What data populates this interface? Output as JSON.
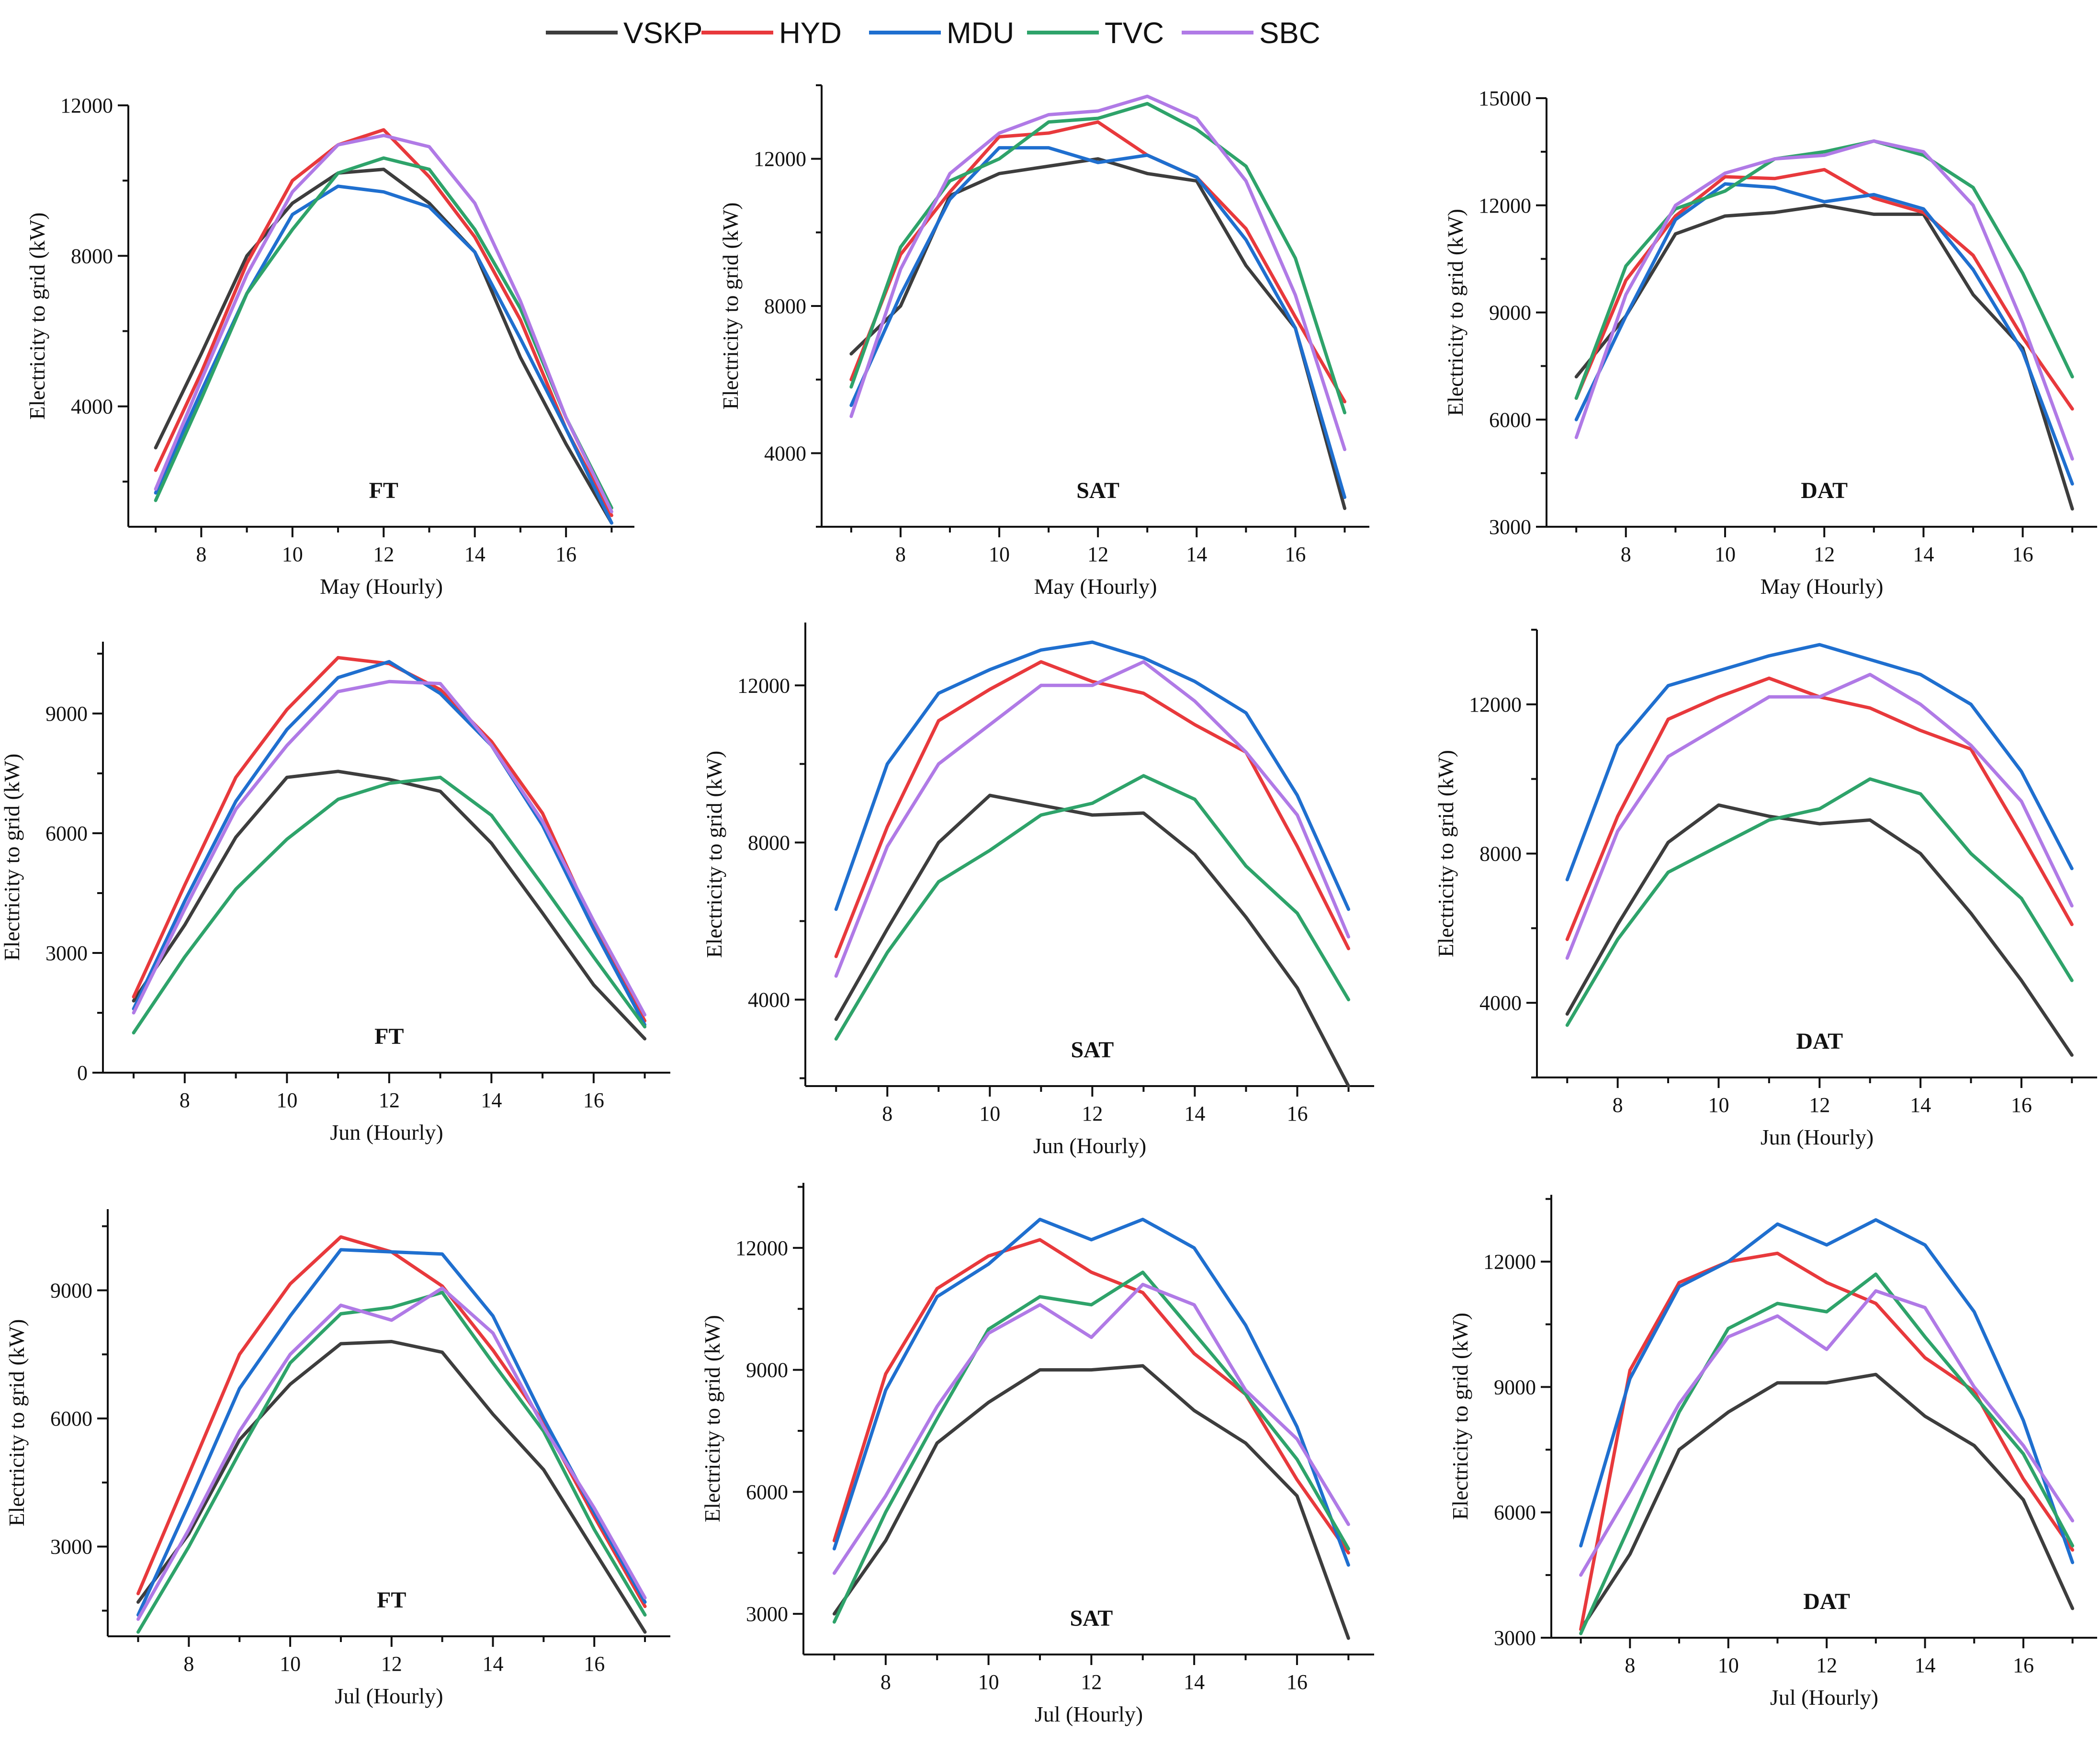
{
  "legend": [
    {
      "name": "VSKP",
      "color": "#3d3d3d"
    },
    {
      "name": "HYD",
      "color": "#e8393c"
    },
    {
      "name": "MDU",
      "color": "#1f6fcf"
    },
    {
      "name": "TVC",
      "color": "#2ea36a"
    },
    {
      "name": "SBC",
      "color": "#b07ae6"
    }
  ],
  "chart_data": [
    {
      "type": "line",
      "title": "FT",
      "xlabel": "May (Hourly)",
      "ylabel": "Electricity to grid (kW)",
      "x": [
        7,
        8,
        9,
        10,
        11,
        12,
        13,
        14,
        15,
        16,
        17
      ],
      "xticks": [
        8,
        10,
        12,
        14,
        16
      ],
      "xlim": [
        6.4,
        17.5
      ],
      "yticks": [
        4000,
        8000,
        12000
      ],
      "ylim": [
        800,
        12000
      ],
      "series": [
        {
          "name": "VSKP",
          "values": [
            2900,
            5400,
            8000,
            9400,
            10200,
            10300,
            9400,
            8100,
            5300,
            3000,
            900
          ]
        },
        {
          "name": "HYD",
          "values": [
            2300,
            4900,
            7800,
            10000,
            10950,
            11350,
            10100,
            8500,
            6300,
            3400,
            1100
          ]
        },
        {
          "name": "MDU",
          "values": [
            1700,
            4400,
            7000,
            9100,
            9850,
            9700,
            9300,
            8100,
            5800,
            3400,
            900
          ]
        },
        {
          "name": "TVC",
          "values": [
            1500,
            4200,
            7000,
            8700,
            10200,
            10600,
            10300,
            8700,
            6600,
            3700,
            1300
          ]
        },
        {
          "name": "SBC",
          "values": [
            1800,
            4700,
            7500,
            9700,
            10950,
            11200,
            10900,
            9400,
            6800,
            3700,
            1200
          ]
        }
      ]
    },
    {
      "type": "line",
      "title": "SAT",
      "xlabel": "May (Hourly)",
      "ylabel": "Electricity to grid (kW)",
      "x": [
        7,
        8,
        9,
        10,
        11,
        12,
        13,
        14,
        15,
        16,
        17
      ],
      "xticks": [
        8,
        10,
        12,
        14,
        16
      ],
      "xlim": [
        6.4,
        17.5
      ],
      "yticks": [
        4000,
        8000,
        12000
      ],
      "ylim": [
        2000,
        14000
      ],
      "series": [
        {
          "name": "VSKP",
          "values": [
            6700,
            8000,
            11000,
            11600,
            11800,
            12000,
            11600,
            11400,
            9100,
            7400,
            2500
          ]
        },
        {
          "name": "HYD",
          "values": [
            6000,
            9400,
            11100,
            12600,
            12700,
            13000,
            12100,
            11500,
            10100,
            7700,
            5400
          ]
        },
        {
          "name": "MDU",
          "values": [
            5300,
            8300,
            10900,
            12300,
            12300,
            11900,
            12100,
            11500,
            9800,
            7400,
            2800
          ]
        },
        {
          "name": "TVC",
          "values": [
            5800,
            9600,
            11400,
            12000,
            13000,
            13100,
            13500,
            12800,
            11800,
            9300,
            5100
          ]
        },
        {
          "name": "SBC",
          "values": [
            5000,
            9000,
            11600,
            12700,
            13200,
            13300,
            13700,
            13100,
            11400,
            8300,
            4100
          ]
        }
      ]
    },
    {
      "type": "line",
      "title": "DAT",
      "xlabel": "May (Hourly)",
      "ylabel": "Electricity to grid (kW)",
      "x": [
        7,
        8,
        9,
        10,
        11,
        12,
        13,
        14,
        15,
        16,
        17
      ],
      "xticks": [
        8,
        10,
        12,
        14,
        16
      ],
      "xlim": [
        6.4,
        17.5
      ],
      "yticks": [
        3000,
        6000,
        9000,
        12000,
        15000
      ],
      "ylim": [
        3000,
        15000
      ],
      "series": [
        {
          "name": "VSKP",
          "values": [
            7200,
            8900,
            11200,
            11700,
            11800,
            12000,
            11750,
            11750,
            9500,
            8000,
            3500
          ]
        },
        {
          "name": "HYD",
          "values": [
            6600,
            9900,
            11700,
            12800,
            12750,
            13000,
            12200,
            11800,
            10600,
            8300,
            6300
          ]
        },
        {
          "name": "MDU",
          "values": [
            6000,
            8900,
            11600,
            12600,
            12500,
            12100,
            12300,
            11900,
            10200,
            7900,
            4200
          ]
        },
        {
          "name": "TVC",
          "values": [
            6600,
            10300,
            11900,
            12400,
            13300,
            13500,
            13800,
            13400,
            12500,
            10100,
            7200
          ]
        },
        {
          "name": "SBC",
          "values": [
            5500,
            9500,
            12000,
            12900,
            13300,
            13400,
            13800,
            13500,
            12000,
            8700,
            4900
          ]
        }
      ]
    },
    {
      "type": "line",
      "title": "FT",
      "xlabel": "Jun (Hourly)",
      "ylabel": "Electricity to grid (kW)",
      "x": [
        7,
        8,
        9,
        10,
        11,
        12,
        13,
        14,
        15,
        16,
        17
      ],
      "xticks": [
        8,
        10,
        12,
        14,
        16
      ],
      "xlim": [
        6.4,
        17.5
      ],
      "yticks": [
        0,
        3000,
        6000,
        9000
      ],
      "ylim": [
        0,
        10800
      ],
      "series": [
        {
          "name": "VSKP",
          "values": [
            1800,
            3700,
            5900,
            7400,
            7550,
            7350,
            7050,
            5750,
            4000,
            2200,
            850
          ]
        },
        {
          "name": "HYD",
          "values": [
            1900,
            4700,
            7400,
            9100,
            10400,
            10250,
            9600,
            8300,
            6500,
            3700,
            1300
          ]
        },
        {
          "name": "MDU",
          "values": [
            1600,
            4300,
            6800,
            8600,
            9900,
            10300,
            9500,
            8200,
            6200,
            3600,
            1200
          ]
        },
        {
          "name": "TVC",
          "values": [
            1000,
            2900,
            4600,
            5850,
            6850,
            7250,
            7400,
            6450,
            4700,
            2900,
            1150
          ]
        },
        {
          "name": "SBC",
          "values": [
            1500,
            4100,
            6600,
            8200,
            9550,
            9800,
            9750,
            8200,
            6300,
            3800,
            1450
          ]
        }
      ]
    },
    {
      "type": "line",
      "title": "SAT",
      "xlabel": "Jun (Hourly)",
      "ylabel": "Electricity to grid (kW)",
      "x": [
        7,
        8,
        9,
        10,
        11,
        12,
        13,
        14,
        15,
        16,
        17
      ],
      "xticks": [
        8,
        10,
        12,
        14,
        16
      ],
      "xlim": [
        6.4,
        17.5
      ],
      "yticks": [
        4000,
        8000,
        12000
      ],
      "ylim": [
        1800,
        13600
      ],
      "series": [
        {
          "name": "VSKP",
          "values": [
            3500,
            5800,
            8000,
            9200,
            8950,
            8700,
            8750,
            7700,
            6100,
            4300,
            1800
          ]
        },
        {
          "name": "HYD",
          "values": [
            5100,
            8400,
            11100,
            11900,
            12600,
            12100,
            11800,
            11000,
            10300,
            7900,
            5300
          ]
        },
        {
          "name": "MDU",
          "values": [
            6300,
            10000,
            11800,
            12400,
            12900,
            13100,
            12700,
            12100,
            11300,
            9200,
            6300
          ]
        },
        {
          "name": "TVC",
          "values": [
            3000,
            5200,
            7000,
            7800,
            8700,
            9000,
            9700,
            9100,
            7400,
            6200,
            4000
          ]
        },
        {
          "name": "SBC",
          "values": [
            4600,
            7900,
            10000,
            11000,
            12000,
            12000,
            12600,
            11600,
            10300,
            8700,
            5600
          ]
        }
      ]
    },
    {
      "type": "line",
      "title": "DAT",
      "xlabel": "Jun (Hourly)",
      "ylabel": "Electricity to grid (kW)",
      "x": [
        7,
        8,
        9,
        10,
        11,
        12,
        13,
        14,
        15,
        16,
        17
      ],
      "xticks": [
        8,
        10,
        12,
        14,
        16
      ],
      "xlim": [
        6.4,
        17.5
      ],
      "yticks": [
        4000,
        8000,
        12000
      ],
      "ylim": [
        2000,
        14000
      ],
      "series": [
        {
          "name": "VSKP",
          "values": [
            3700,
            6100,
            8300,
            9300,
            9000,
            8800,
            8900,
            8000,
            6400,
            4600,
            2600
          ]
        },
        {
          "name": "HYD",
          "values": [
            5700,
            9000,
            11600,
            12200,
            12700,
            12200,
            11900,
            11300,
            10800,
            8500,
            6100
          ]
        },
        {
          "name": "MDU",
          "values": [
            7300,
            10900,
            12500,
            12900,
            13300,
            13600,
            13200,
            12800,
            12000,
            10200,
            7600
          ]
        },
        {
          "name": "TVC",
          "values": [
            3400,
            5700,
            7500,
            8200,
            8900,
            9200,
            10000,
            9600,
            8000,
            6800,
            4600
          ]
        },
        {
          "name": "SBC",
          "values": [
            5200,
            8600,
            10600,
            11400,
            12200,
            12200,
            12800,
            12000,
            10900,
            9400,
            6600
          ]
        }
      ]
    },
    {
      "type": "line",
      "title": "FT",
      "xlabel": "Jul (Hourly)",
      "ylabel": "Electricity to grid (kW)",
      "x": [
        7,
        8,
        9,
        10,
        11,
        12,
        13,
        14,
        15,
        16,
        17
      ],
      "xticks": [
        8,
        10,
        12,
        14,
        16
      ],
      "xlim": [
        6.4,
        17.5
      ],
      "yticks": [
        3000,
        6000,
        9000
      ],
      "ylim": [
        900,
        10900
      ],
      "series": [
        {
          "name": "VSKP",
          "values": [
            1700,
            3300,
            5500,
            6800,
            7750,
            7800,
            7550,
            6100,
            4800,
            2900,
            1000
          ]
        },
        {
          "name": "HYD",
          "values": [
            1900,
            4700,
            7500,
            9150,
            10250,
            9900,
            9100,
            7600,
            5900,
            3700,
            1600
          ]
        },
        {
          "name": "MDU",
          "values": [
            1400,
            4000,
            6700,
            8400,
            9950,
            9900,
            9850,
            8400,
            6000,
            3800,
            1700
          ]
        },
        {
          "name": "TVC",
          "values": [
            1000,
            3000,
            5200,
            7300,
            8450,
            8600,
            8950,
            7300,
            5700,
            3400,
            1400
          ]
        },
        {
          "name": "SBC",
          "values": [
            1300,
            3400,
            5700,
            7500,
            8650,
            8300,
            9050,
            8000,
            5800,
            3900,
            1800
          ]
        }
      ]
    },
    {
      "type": "line",
      "title": "SAT",
      "xlabel": "Jul (Hourly)",
      "ylabel": "Electricity to grid (kW)",
      "x": [
        7,
        8,
        9,
        10,
        11,
        12,
        13,
        14,
        15,
        16,
        17
      ],
      "xticks": [
        8,
        10,
        12,
        14,
        16
      ],
      "xlim": [
        6.4,
        17.5
      ],
      "yticks": [
        3000,
        6000,
        9000,
        12000
      ],
      "ylim": [
        2000,
        13600
      ],
      "series": [
        {
          "name": "VSKP",
          "values": [
            3000,
            4800,
            7200,
            8200,
            9000,
            9000,
            9100,
            8000,
            7200,
            5900,
            2400
          ]
        },
        {
          "name": "HYD",
          "values": [
            4800,
            8900,
            11000,
            11800,
            12200,
            11400,
            10900,
            9400,
            8400,
            6300,
            4500
          ]
        },
        {
          "name": "MDU",
          "values": [
            4600,
            8500,
            10800,
            11600,
            12700,
            12200,
            12700,
            12000,
            10100,
            7600,
            4200
          ]
        },
        {
          "name": "TVC",
          "values": [
            2800,
            5500,
            7800,
            10000,
            10800,
            10600,
            11400,
            9900,
            8400,
            6800,
            4600
          ]
        },
        {
          "name": "SBC",
          "values": [
            4000,
            5900,
            8100,
            9900,
            10600,
            9800,
            11100,
            10600,
            8500,
            7300,
            5200
          ]
        }
      ]
    },
    {
      "type": "line",
      "title": "DAT",
      "xlabel": "Jul (Hourly)",
      "ylabel": "Electricity to grid (kW)",
      "x": [
        7,
        8,
        9,
        10,
        11,
        12,
        13,
        14,
        15,
        16,
        17
      ],
      "xticks": [
        8,
        10,
        12,
        14,
        16
      ],
      "xlim": [
        6.4,
        17.5
      ],
      "yticks": [
        3000,
        6000,
        9000,
        12000
      ],
      "ylim": [
        3000,
        13600
      ],
      "series": [
        {
          "name": "VSKP",
          "values": [
            3200,
            5000,
            7500,
            8400,
            9100,
            9100,
            9300,
            8300,
            7600,
            6300,
            3700
          ]
        },
        {
          "name": "HYD",
          "values": [
            3200,
            9400,
            11500,
            12000,
            12200,
            11500,
            11000,
            9700,
            8900,
            6800,
            5100
          ]
        },
        {
          "name": "MDU",
          "values": [
            5200,
            9200,
            11400,
            12000,
            12900,
            12400,
            13000,
            12400,
            10800,
            8200,
            4800
          ]
        },
        {
          "name": "TVC",
          "values": [
            3100,
            5700,
            8400,
            10400,
            11000,
            10800,
            11700,
            10200,
            8800,
            7400,
            5200
          ]
        },
        {
          "name": "SBC",
          "values": [
            4500,
            6500,
            8600,
            10200,
            10700,
            9900,
            11300,
            10900,
            9000,
            7600,
            5800
          ]
        }
      ]
    }
  ]
}
